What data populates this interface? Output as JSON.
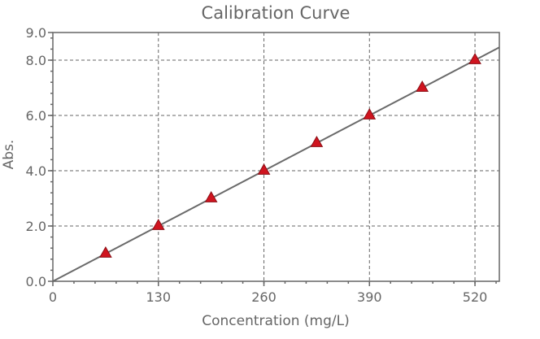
{
  "chart_data": {
    "type": "scatter",
    "title": "Calibration Curve",
    "xlabel": "Concentration (mg/L)",
    "ylabel": "Abs.",
    "xlim": [
      0,
      550
    ],
    "ylim": [
      0,
      9.0
    ],
    "x_ticks": [
      0,
      130,
      260,
      390,
      520
    ],
    "x_tick_labels": [
      "0",
      "130",
      "260",
      "390",
      "520"
    ],
    "y_ticks": [
      0,
      2.0,
      4.0,
      6.0,
      8.0,
      9.0
    ],
    "y_tick_labels": [
      "0.0",
      "2.0",
      "4.0",
      "6.0",
      "8.0",
      "9.0"
    ],
    "grid": true,
    "marker": "triangle",
    "colors": {
      "marker": "#d0141f",
      "line": "#6a6a6a",
      "text": "#666666"
    },
    "series": [
      {
        "x": [
          65,
          130,
          195,
          260,
          325,
          390,
          455,
          520
        ],
        "y": [
          1.0,
          2.0,
          3.0,
          4.0,
          5.0,
          6.0,
          7.0,
          8.0
        ]
      }
    ],
    "fit_line": {
      "slope": 0.015385,
      "intercept": 0.0
    }
  }
}
